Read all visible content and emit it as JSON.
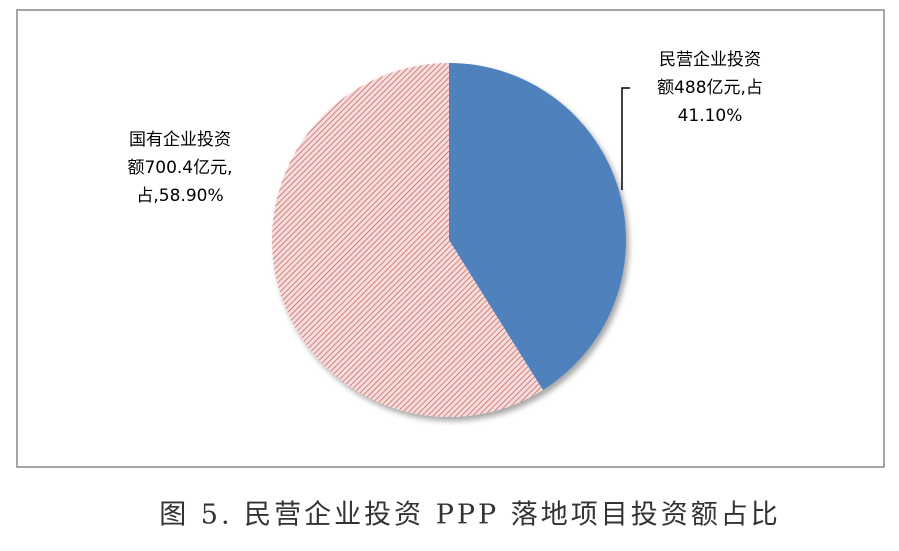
{
  "chart_data": {
    "type": "pie",
    "caption": "图 5. 民营企业投资 PPP 落地项目投资额占比",
    "values": [
      41.1,
      58.9
    ],
    "value_labels": [
      [
        "民营企业投资",
        "额488亿元,占",
        "41.10%"
      ],
      [
        "国有企业投资",
        "额700.4亿元,",
        "占,58.90%"
      ]
    ],
    "colors": [
      "#4f81bd",
      "#c0504d"
    ]
  }
}
